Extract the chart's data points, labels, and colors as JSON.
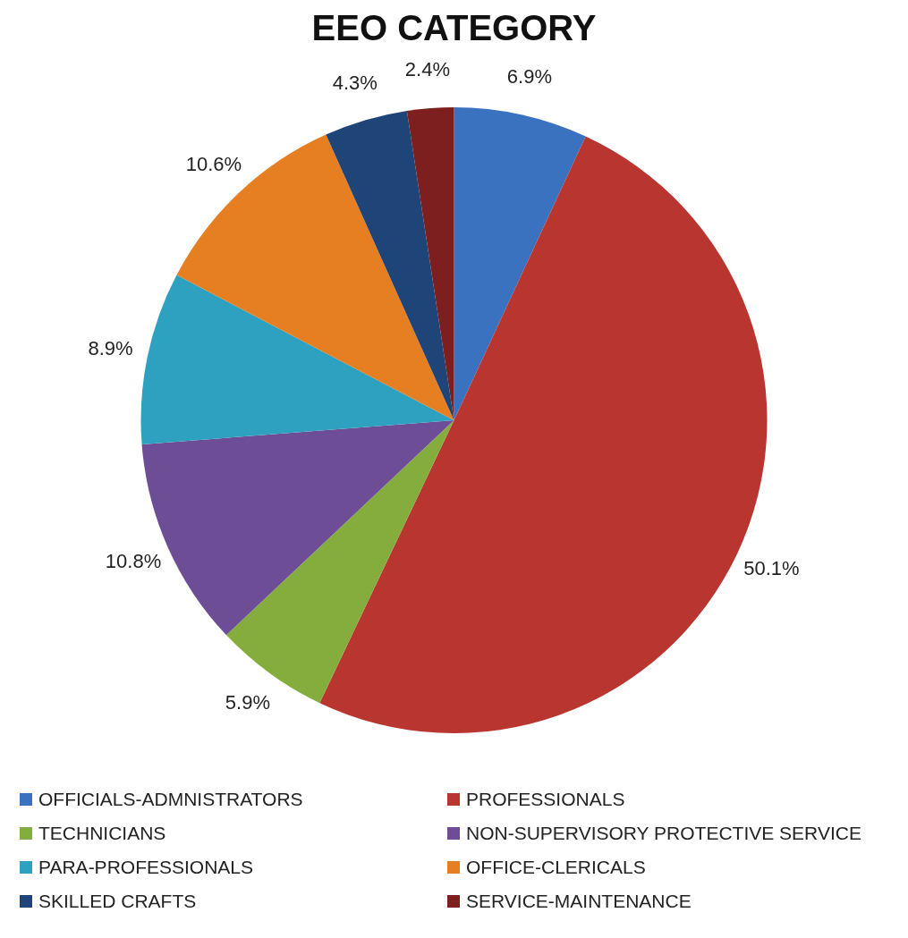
{
  "chart_data": {
    "type": "pie",
    "title": "EEO CATEGORY",
    "categories": [
      "OFFICIALS-ADMNISTRATORS",
      "PROFESSIONALS",
      "TECHNICIANS",
      "NON-SUPERVISORY PROTECTIVE SERVICE",
      "PARA-PROFESSIONALS",
      "OFFICE-CLERICALS",
      "SKILLED CRAFTS",
      "SERVICE-MAINTENANCE"
    ],
    "values": [
      6.9,
      50.1,
      5.9,
      10.8,
      8.9,
      10.6,
      4.3,
      2.4
    ],
    "colors": [
      "#3a72c0",
      "#b83530",
      "#84ad3e",
      "#6d4e96",
      "#2fa1c0",
      "#e67e22",
      "#1f4477",
      "#7d1f1f"
    ],
    "value_labels": [
      "6.9%",
      "50.1%",
      "5.9%",
      "10.8%",
      "8.9%",
      "10.6%",
      "4.3%",
      "2.4%"
    ],
    "legend": "bottom"
  }
}
